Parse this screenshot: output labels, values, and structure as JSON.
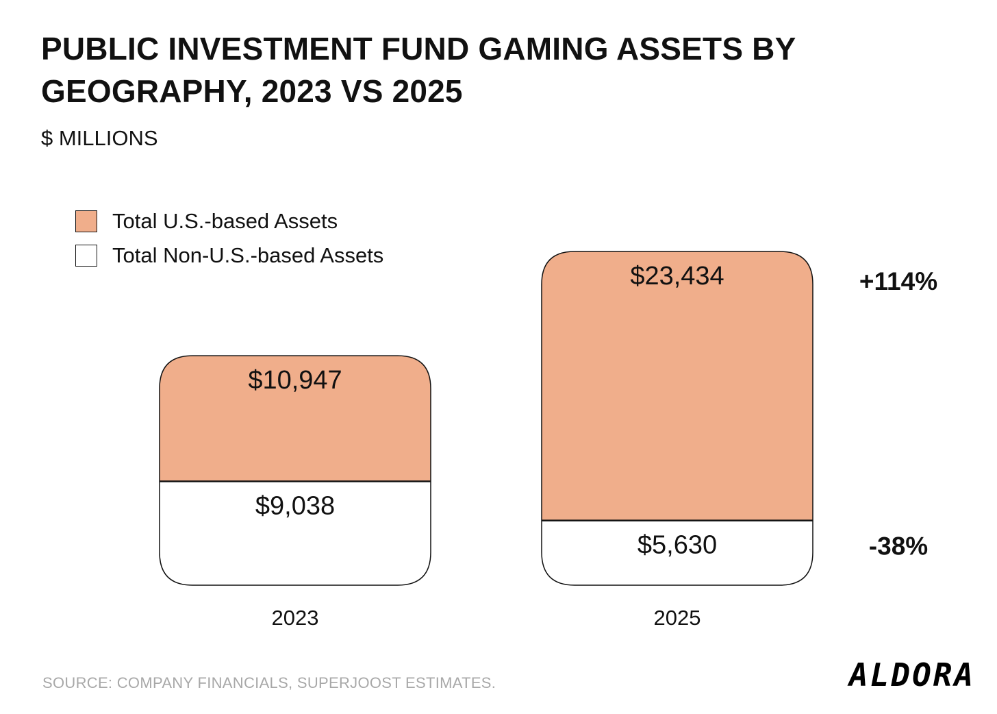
{
  "header": {
    "title": "PUBLIC INVESTMENT FUND GAMING ASSETS BY GEOGRAPHY, 2023 VS 2025",
    "subtitle": "$ MILLIONS"
  },
  "legend": [
    {
      "label": "Total U.S.-based Assets",
      "color": "#f0ae8b"
    },
    {
      "label": "Total Non-U.S.-based Assets",
      "color": "#ffffff"
    }
  ],
  "footer": {
    "source": "SOURCE: COMPANY FINANCIALS, SUPERJOOST ESTIMATES.",
    "logo": "ALDORA"
  },
  "chart_data": {
    "type": "bar",
    "stacked": true,
    "title": "PUBLIC INVESTMENT FUND GAMING ASSETS BY GEOGRAPHY, 2023 VS 2025",
    "subtitle": "$ MILLIONS",
    "categories": [
      "2023",
      "2025"
    ],
    "series": [
      {
        "name": "Total Non-U.S.-based Assets",
        "values": [
          9038,
          5630
        ],
        "labels": [
          "$9,038",
          "$5,630"
        ],
        "color": "#ffffff"
      },
      {
        "name": "Total U.S.-based Assets",
        "values": [
          10947,
          23434
        ],
        "labels": [
          "$10,947",
          "$23,434"
        ],
        "color": "#f0ae8b"
      }
    ],
    "annotations": [
      {
        "series": "Total U.S.-based Assets",
        "text": "+114%"
      },
      {
        "series": "Total Non-U.S.-based Assets",
        "text": "-38%"
      }
    ],
    "legend_position": "top-left",
    "grid": false
  }
}
